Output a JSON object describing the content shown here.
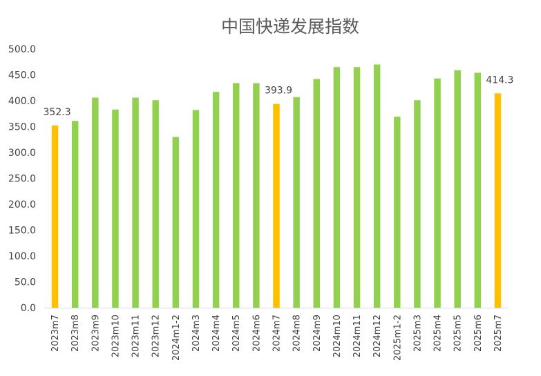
{
  "chart_data": {
    "type": "bar",
    "title": "中国快递发展指数",
    "categories": [
      "2023m7",
      "2023m8",
      "2023m9",
      "2023m10",
      "2023m11",
      "2023m12",
      "2024m1-2",
      "2024m3",
      "2024m4",
      "2024m5",
      "2024m6",
      "2024m7",
      "2024m8",
      "2024m9",
      "2024m10",
      "2024m11",
      "2024m12",
      "2025m1-2",
      "2025m3",
      "2025m4",
      "2025m5",
      "2025m6",
      "2025m7"
    ],
    "values": [
      352.3,
      361,
      406,
      383,
      406,
      401,
      330,
      382,
      417,
      434,
      434,
      393.9,
      407,
      442,
      465,
      465,
      470,
      369,
      401,
      443,
      459,
      454,
      414.3
    ],
    "highlight_indices": [
      0,
      11,
      22
    ],
    "data_labels": [
      {
        "index": 0,
        "text": "352.3"
      },
      {
        "index": 11,
        "text": "393.9"
      },
      {
        "index": 22,
        "text": "414.3"
      }
    ],
    "yticks": [
      "0.0",
      "50.0",
      "100.0",
      "150.0",
      "200.0",
      "250.0",
      "300.0",
      "350.0",
      "400.0",
      "450.0",
      "500.0"
    ],
    "ylim": [
      0,
      500
    ],
    "grid": false,
    "legend": "none",
    "colors": {
      "normal": "#92D050",
      "highlight": "#FFC000",
      "axis": "#D9D9D9"
    }
  }
}
